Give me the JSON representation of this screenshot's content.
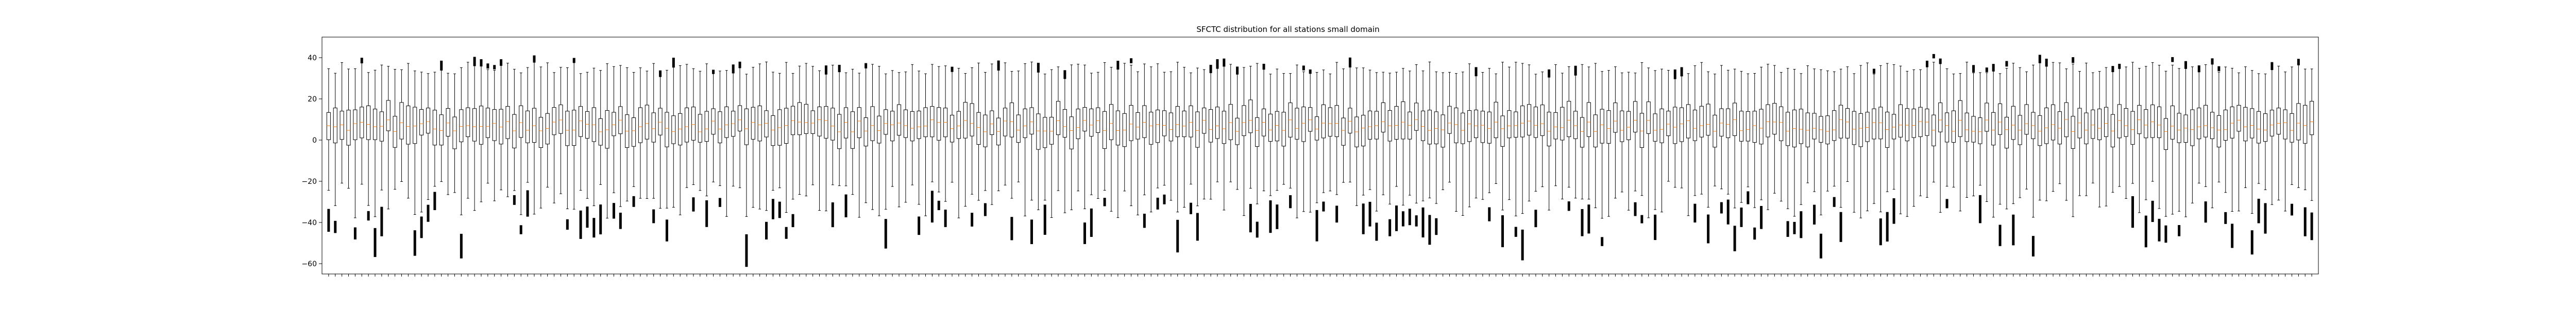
{
  "chart_data": {
    "type": "boxplot",
    "title": "SFCTC distribution for all stations small domain",
    "xlabel": "",
    "ylabel": "",
    "ylim": [
      -65,
      50
    ],
    "yticks": [
      -60,
      -40,
      -20,
      0,
      20,
      40
    ],
    "yticks_labels": [
      "−60",
      "−40",
      "−20",
      "0",
      "20",
      "40"
    ],
    "grid": false,
    "num_stations": 300,
    "typical_box": {
      "whisker_low": -20,
      "q1": 0,
      "median": 7,
      "q3": 15,
      "whisker_high": 32
    },
    "series_note": "each x tick is one station id; box statistics vary per station",
    "colors": {
      "box": "#000000",
      "median": "#ff7f0e",
      "frame": "#000000"
    }
  }
}
